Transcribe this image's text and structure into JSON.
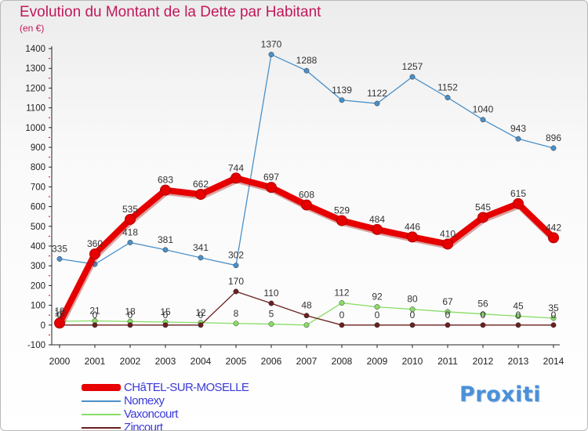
{
  "chart_data": {
    "type": "line",
    "title": "Evolution du Montant de la Dette par Habitant",
    "subtitle": "(en €)",
    "xlabel": "",
    "ylabel": "",
    "x": [
      "2000",
      "2001",
      "2002",
      "2003",
      "2004",
      "2005",
      "2006",
      "2007",
      "2008",
      "2009",
      "2010",
      "2011",
      "2012",
      "2013",
      "2014"
    ],
    "ylim": [
      -100,
      1400
    ],
    "yticks": [
      -100,
      0,
      100,
      200,
      300,
      400,
      500,
      600,
      700,
      800,
      900,
      1000,
      1100,
      1200,
      1300,
      1400
    ],
    "grid": false,
    "legend_position": "bottom-left",
    "series": [
      {
        "name": "CHâTEL-SUR-MOSELLE",
        "color": "#e60000",
        "thick": true,
        "values": [
          10,
          360,
          535,
          683,
          662,
          744,
          697,
          608,
          529,
          484,
          446,
          410,
          545,
          615,
          442
        ]
      },
      {
        "name": "Nomexy",
        "color": "#4a90c8",
        "thick": false,
        "values": [
          335,
          308,
          418,
          381,
          341,
          302,
          1370,
          1288,
          1139,
          1122,
          1257,
          1152,
          1040,
          943,
          896
        ]
      },
      {
        "name": "Vaxoncourt",
        "color": "#88dd66",
        "thick": false,
        "values": [
          19,
          21,
          18,
          15,
          12,
          8,
          5,
          0,
          112,
          92,
          80,
          67,
          56,
          45,
          35
        ]
      },
      {
        "name": "Zincourt",
        "color": "#6b1f1f",
        "thick": false,
        "values": [
          0,
          0,
          0,
          0,
          0,
          170,
          110,
          48,
          0,
          0,
          0,
          0,
          0,
          0,
          0
        ]
      }
    ],
    "data_labels": [
      {
        "series": 0,
        "text": [
          "10",
          "360",
          "535",
          "683",
          "662",
          "744",
          "697",
          "608",
          "529",
          "484",
          "446",
          "410",
          "545",
          "615",
          "442"
        ]
      },
      {
        "series": 1,
        "text": [
          "335",
          "",
          "418",
          "381",
          "341",
          "302",
          "1370",
          "1288",
          "1139",
          "1122",
          "1257",
          "1152",
          "1040",
          "943",
          "896"
        ]
      },
      {
        "series": 2,
        "text": [
          "19",
          "21",
          "18",
          "15",
          "12",
          "8",
          "5",
          "",
          "112",
          "92",
          "80",
          "67",
          "56",
          "45",
          "35"
        ]
      },
      {
        "series": 3,
        "text": [
          "0",
          "0",
          "0",
          "0",
          "0",
          "170",
          "110",
          "48",
          "0",
          "0",
          "0",
          "0",
          "0",
          "0",
          "0"
        ]
      }
    ]
  },
  "logo_text": "Proxiti"
}
